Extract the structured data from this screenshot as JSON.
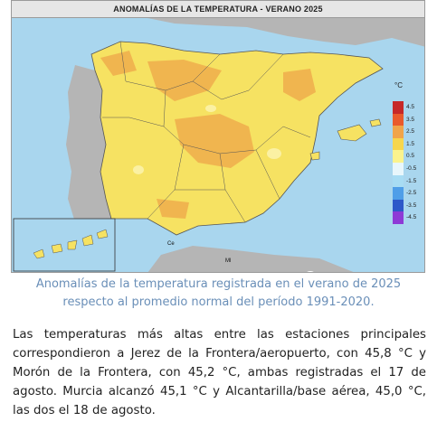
{
  "map": {
    "title": "ANOMALÍAS DE LA TEMPERATURA - VERANO 2025",
    "legend_unit": "°C",
    "legend": [
      {
        "label": "4.5",
        "color": "#c62828"
      },
      {
        "label": "3.5",
        "color": "#e95a2c"
      },
      {
        "label": "2.5",
        "color": "#f0a44a"
      },
      {
        "label": "1.5",
        "color": "#f6d64d"
      },
      {
        "label": "0.5",
        "color": "#fbf38d"
      },
      {
        "label": "-0.5",
        "color": "#e8f6fb"
      },
      {
        "label": "-1.5",
        "color": "#a8dcf3"
      },
      {
        "label": "-2.5",
        "color": "#4f9ee8"
      },
      {
        "label": "-3.5",
        "color": "#2d58c9"
      },
      {
        "label": "-4.5",
        "color": "#8e3ad6"
      }
    ],
    "marks": {
      "ceuta": "Ce",
      "melilla": "Ml"
    },
    "logo_text": "aemet",
    "colors": {
      "sea": "#a9d6ee",
      "land_outside": "#b5b5b5",
      "base_anomaly": "#f6e262",
      "warm_anomaly": "#f0b54f",
      "cool_anomaly": "#fbf1a3"
    }
  },
  "caption": {
    "line1": "Anomalías de la temperatura registrada en el verano de 2025",
    "line2": "respecto al promedio normal del período 1991-2020."
  },
  "body_text": "Las temperaturas más altas entre las estaciones principales correspondieron a Jerez de la Frontera/aeropuerto, con 45,8 °C y Morón de la Frontera, con 45,2 °C, ambas registradas el 17 de agosto. Murcia alcanzó 45,1 °C y Alcantarilla/base aérea, 45,0 °C, las dos el 18 de agosto."
}
